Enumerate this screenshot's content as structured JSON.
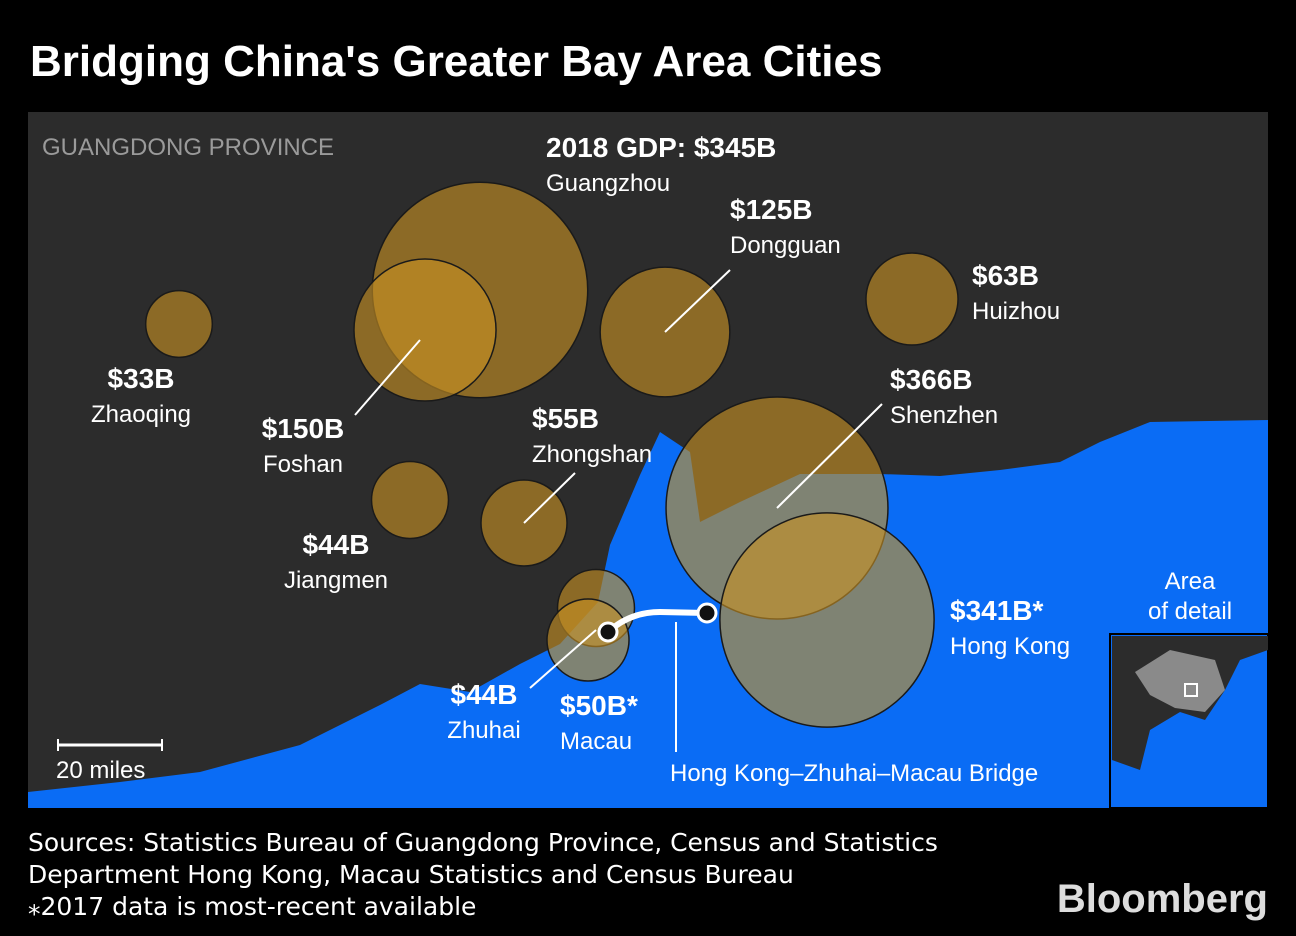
{
  "title": "Bridging China's Greater Bay Area Cities",
  "map": {
    "type": "bubble",
    "region_label": "GUANGDONG PROVINCE",
    "cities": [
      {
        "name": "Guangzhou",
        "value": 345,
        "value_label": "2018 GDP: $345B"
      },
      {
        "name": "Foshan",
        "value": 150,
        "value_label": "$150B"
      },
      {
        "name": "Zhaoqing",
        "value": 33,
        "value_label": "$33B"
      },
      {
        "name": "Dongguan",
        "value": 125,
        "value_label": "$125B"
      },
      {
        "name": "Huizhou",
        "value": 63,
        "value_label": "$63B"
      },
      {
        "name": "Shenzhen",
        "value": 366,
        "value_label": "$366B"
      },
      {
        "name": "Hong Kong",
        "value": 341,
        "value_label": "$341B*"
      },
      {
        "name": "Jiangmen",
        "value": 44,
        "value_label": "$44B"
      },
      {
        "name": "Zhongshan",
        "value": 55,
        "value_label": "$55B"
      },
      {
        "name": "Zhuhai",
        "value": 44,
        "value_label": "$44B"
      },
      {
        "name": "Macau",
        "value": 50,
        "value_label": "$50B*"
      }
    ],
    "bridge_label": "Hong Kong–Zhuhai–Macau Bridge",
    "scale_label": "20 miles",
    "inset_label": [
      "Area",
      "of detail"
    ]
  },
  "footer": {
    "sources": [
      "Sources: Statistics Bureau of Guangdong Province, Census and Statistics",
      "Department Hong Kong, Macau Statistics and Census Bureau"
    ],
    "note": "⁎2017 data is most-recent available",
    "brand": "Bloomberg"
  }
}
